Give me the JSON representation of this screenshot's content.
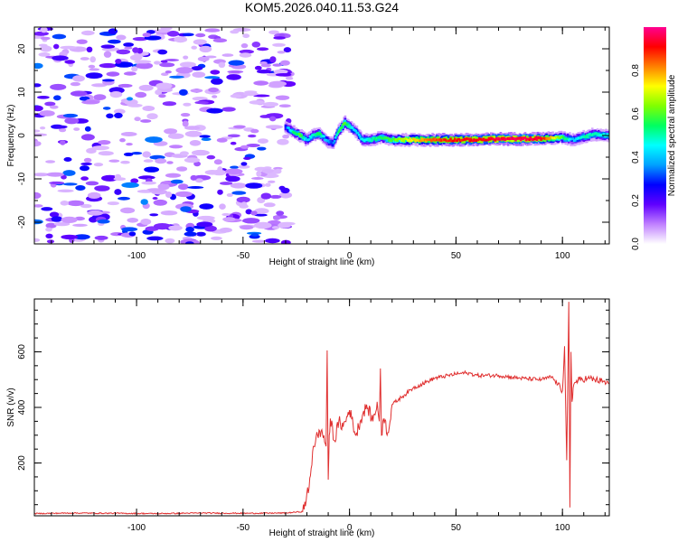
{
  "title": "KOM5.2026.040.11.53.G24",
  "chart_data": [
    {
      "type": "heatmap",
      "xlabel": "Height of straight line (km)",
      "ylabel": "Frequency (Hz)",
      "xlim": [
        -148,
        122
      ],
      "ylim": [
        -25,
        25
      ],
      "xticks": [
        -100,
        -50,
        0,
        50,
        100
      ],
      "xtick_labels": [
        "-100",
        "-50",
        "0",
        "50",
        "100"
      ],
      "yticks": [
        -20,
        -10,
        0,
        10,
        20
      ],
      "ytick_labels": [
        "-20",
        "-10",
        "0",
        "10",
        "20"
      ],
      "colorbar": {
        "label": "Normalized spectral amplitude",
        "range": [
          0,
          1
        ],
        "ticks": [
          0,
          0.2,
          0.4,
          0.6,
          0.8
        ],
        "tick_labels": [
          "0.0",
          "0.2",
          "0.4",
          "0.6",
          "0.8"
        ],
        "colors": [
          "#ffffff",
          "#c080ff",
          "#6000ff",
          "#0000ff",
          "#00a0ff",
          "#00ffff",
          "#00ff60",
          "#80ff00",
          "#ffff00",
          "#ff8000",
          "#ff0000",
          "#ff0090"
        ]
      },
      "noise_region_x": [
        -148,
        -28
      ],
      "ridge": {
        "x": [
          -30,
          -27,
          -23,
          -20,
          -17,
          -14,
          -11,
          -8,
          -5,
          -2,
          0,
          3,
          6,
          10,
          15,
          20,
          30,
          40,
          50,
          60,
          70,
          80,
          90,
          100,
          105,
          110,
          115,
          122
        ],
        "freq": [
          2,
          1,
          0,
          -1,
          0,
          0.5,
          -1,
          -2,
          1,
          3,
          2,
          1,
          -1,
          -1,
          -0.5,
          -1,
          -1,
          -1,
          -1,
          -1,
          -0.8,
          -0.8,
          -0.7,
          -0.5,
          -1,
          -0.3,
          0.3,
          0
        ],
        "amplitude": [
          0.3,
          0.5,
          0.6,
          0.4,
          0.5,
          0.55,
          0.4,
          0.3,
          0.55,
          0.6,
          0.5,
          0.4,
          0.45,
          0.5,
          0.55,
          0.6,
          0.75,
          0.85,
          0.9,
          0.92,
          0.95,
          0.95,
          0.93,
          0.6,
          0.4,
          0.5,
          0.5,
          0.45
        ]
      }
    },
    {
      "type": "line",
      "xlabel": "Height of straight line (km)",
      "ylabel": "SNR (v/v)",
      "xlim": [
        -148,
        122
      ],
      "ylim": [
        10,
        790
      ],
      "xticks": [
        -100,
        -50,
        0,
        50,
        100
      ],
      "xtick_labels": [
        "-100",
        "-50",
        "0",
        "50",
        "100"
      ],
      "yticks": [
        200,
        400,
        600
      ],
      "ytick_labels": [
        "200",
        "400",
        "600"
      ],
      "color": "#e03030",
      "series": [
        {
          "x": [
            -148,
            -130,
            -110,
            -90,
            -70,
            -50,
            -30,
            -22,
            -19,
            -17,
            -15,
            -13,
            -11,
            -10.5,
            -10,
            -9.5,
            -9,
            -7,
            -5,
            -3,
            0,
            3,
            5,
            8,
            11,
            13,
            14,
            14.5,
            15,
            16,
            18,
            20,
            25,
            30,
            40,
            50,
            55,
            60,
            70,
            80,
            90,
            95,
            100,
            101,
            102,
            103,
            103.5,
            104,
            104.5,
            105,
            106,
            108,
            112,
            118,
            122
          ],
          "y": [
            18,
            20,
            19,
            18,
            20,
            19,
            20,
            25,
            110,
            260,
            300,
            320,
            260,
            605,
            140,
            300,
            360,
            280,
            350,
            330,
            390,
            300,
            350,
            410,
            350,
            420,
            350,
            540,
            300,
            360,
            310,
            410,
            440,
            470,
            505,
            520,
            525,
            515,
            515,
            505,
            500,
            510,
            460,
            620,
            210,
            780,
            40,
            600,
            420,
            470,
            490,
            500,
            505,
            495,
            485
          ]
        }
      ]
    }
  ]
}
